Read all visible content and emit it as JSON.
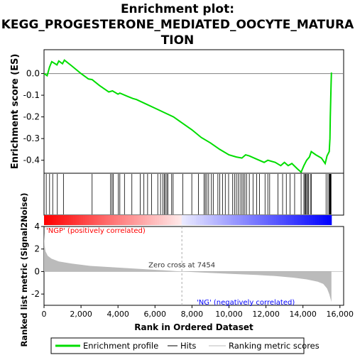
{
  "chart_data": {
    "type": "line",
    "title_lines": [
      "Enrichment plot:",
      "KEGG_PROGESTERONE_MEDIATED_OOCYTE_MATURA",
      "TION"
    ],
    "top_panel": {
      "ylabel": "Enrichment score (ES)",
      "ylim": [
        -0.46,
        0.11
      ],
      "yticks": [
        0.0,
        -0.1,
        -0.2,
        -0.3,
        -0.4
      ],
      "ytick_labels": [
        "0.0",
        "-0.1",
        "-0.2",
        "-0.3",
        "-0.4"
      ],
      "series_name": "Enrichment profile",
      "line_color": "#00dd00",
      "es_curve": [
        [
          0,
          0.0
        ],
        [
          170,
          -0.01
        ],
        [
          300,
          0.03
        ],
        [
          420,
          0.055
        ],
        [
          700,
          0.04
        ],
        [
          800,
          0.058
        ],
        [
          1000,
          0.045
        ],
        [
          1100,
          0.062
        ],
        [
          1500,
          0.035
        ],
        [
          2000,
          0.0
        ],
        [
          2400,
          -0.025
        ],
        [
          2600,
          -0.028
        ],
        [
          3000,
          -0.055
        ],
        [
          3500,
          -0.085
        ],
        [
          3700,
          -0.08
        ],
        [
          4000,
          -0.095
        ],
        [
          4100,
          -0.09
        ],
        [
          4500,
          -0.105
        ],
        [
          4800,
          -0.115
        ],
        [
          5000,
          -0.12
        ],
        [
          5500,
          -0.14
        ],
        [
          6000,
          -0.16
        ],
        [
          6500,
          -0.18
        ],
        [
          7000,
          -0.2
        ],
        [
          7500,
          -0.23
        ],
        [
          8000,
          -0.26
        ],
        [
          8500,
          -0.295
        ],
        [
          9000,
          -0.32
        ],
        [
          9500,
          -0.35
        ],
        [
          10000,
          -0.375
        ],
        [
          10400,
          -0.385
        ],
        [
          10700,
          -0.39
        ],
        [
          10900,
          -0.375
        ],
        [
          11100,
          -0.38
        ],
        [
          11500,
          -0.395
        ],
        [
          11900,
          -0.41
        ],
        [
          12100,
          -0.4
        ],
        [
          12500,
          -0.41
        ],
        [
          12800,
          -0.425
        ],
        [
          13000,
          -0.41
        ],
        [
          13200,
          -0.425
        ],
        [
          13400,
          -0.415
        ],
        [
          13700,
          -0.44
        ],
        [
          13900,
          -0.455
        ],
        [
          14050,
          -0.425
        ],
        [
          14200,
          -0.4
        ],
        [
          14350,
          -0.385
        ],
        [
          14450,
          -0.36
        ],
        [
          14700,
          -0.375
        ],
        [
          15000,
          -0.39
        ],
        [
          15200,
          -0.415
        ],
        [
          15300,
          -0.38
        ],
        [
          15420,
          -0.36
        ],
        [
          15460,
          -0.3
        ],
        [
          15480,
          -0.2
        ],
        [
          15500,
          -0.12
        ],
        [
          15520,
          -0.05
        ],
        [
          15540,
          0.005
        ]
      ]
    },
    "hits_label": "Hits",
    "hits": [
      120,
      300,
      470,
      720,
      1050,
      2600,
      3600,
      3680,
      3750,
      4020,
      4100,
      4350,
      4750,
      5200,
      5400,
      5600,
      5820,
      6150,
      6300,
      6420,
      6500,
      6560,
      6640,
      6700,
      6900,
      6980,
      7500,
      7990,
      8350,
      8650,
      8720,
      8800,
      8900,
      9050,
      9150,
      9400,
      9500,
      9650,
      9800,
      9980,
      10200,
      10300,
      10400,
      10500,
      10600,
      10700,
      10780,
      10860,
      10950,
      11100,
      11300,
      11500,
      11650,
      11950,
      12100,
      12200,
      12650,
      12900,
      13100,
      13300,
      13550,
      13900,
      14050,
      14100,
      14150,
      14200,
      14250,
      14300,
      14400,
      14450,
      15250,
      15350,
      15420,
      15440,
      15460,
      15480,
      15500,
      15520
    ],
    "bottom_panel": {
      "ylabel": "Ranked list metric (Signal2Noise)",
      "xlabel": "Rank in Ordered Dataset",
      "xlim": [
        0,
        16200
      ],
      "xticks": [
        0,
        2000,
        4000,
        6000,
        8000,
        10000,
        12000,
        14000,
        16000
      ],
      "xtick_labels": [
        "0",
        "2,000",
        "4,000",
        "6,000",
        "8,000",
        "10,000",
        "12,000",
        "14,000",
        "16,000"
      ],
      "ylim": [
        -3.0,
        4.0
      ],
      "yticks": [
        4,
        2,
        0,
        -2
      ],
      "ytick_labels": [
        "4",
        "2",
        "0",
        "-2"
      ],
      "series_name": "Ranking metric scores",
      "metric_curve": [
        [
          0,
          3.4
        ],
        [
          30,
          2.3
        ],
        [
          80,
          1.8
        ],
        [
          200,
          1.4
        ],
        [
          400,
          1.15
        ],
        [
          800,
          0.9
        ],
        [
          1500,
          0.7
        ],
        [
          2500,
          0.5
        ],
        [
          4000,
          0.35
        ],
        [
          5500,
          0.2
        ],
        [
          6500,
          0.1
        ],
        [
          7454,
          0.0
        ],
        [
          8500,
          -0.08
        ],
        [
          10000,
          -0.2
        ],
        [
          11500,
          -0.3
        ],
        [
          12500,
          -0.4
        ],
        [
          13500,
          -0.55
        ],
        [
          14200,
          -0.7
        ],
        [
          14800,
          -0.9
        ],
        [
          15100,
          -1.1
        ],
        [
          15300,
          -1.5
        ],
        [
          15420,
          -2.0
        ],
        [
          15540,
          -2.7
        ]
      ],
      "zero_cross_label": "Zero cross at 7454",
      "zero_cross": 7454,
      "pos_label": "'NGP' (positively correlated)",
      "neg_label": "'NG' (negatively correlated)",
      "n_genes": 15540
    },
    "legend": {
      "entries": [
        "Enrichment profile",
        "Hits",
        "Ranking metric scores"
      ],
      "colors": [
        "#00dd00",
        "#000000",
        "#bbbbbb"
      ],
      "placement": "bottom"
    },
    "colors": {
      "pos_label": "#ff0000",
      "neg_label": "#0000ff",
      "metric_fill": "#bbbbbb",
      "bar_pos": "#ff0000",
      "bar_neg": "#0000ff"
    }
  }
}
